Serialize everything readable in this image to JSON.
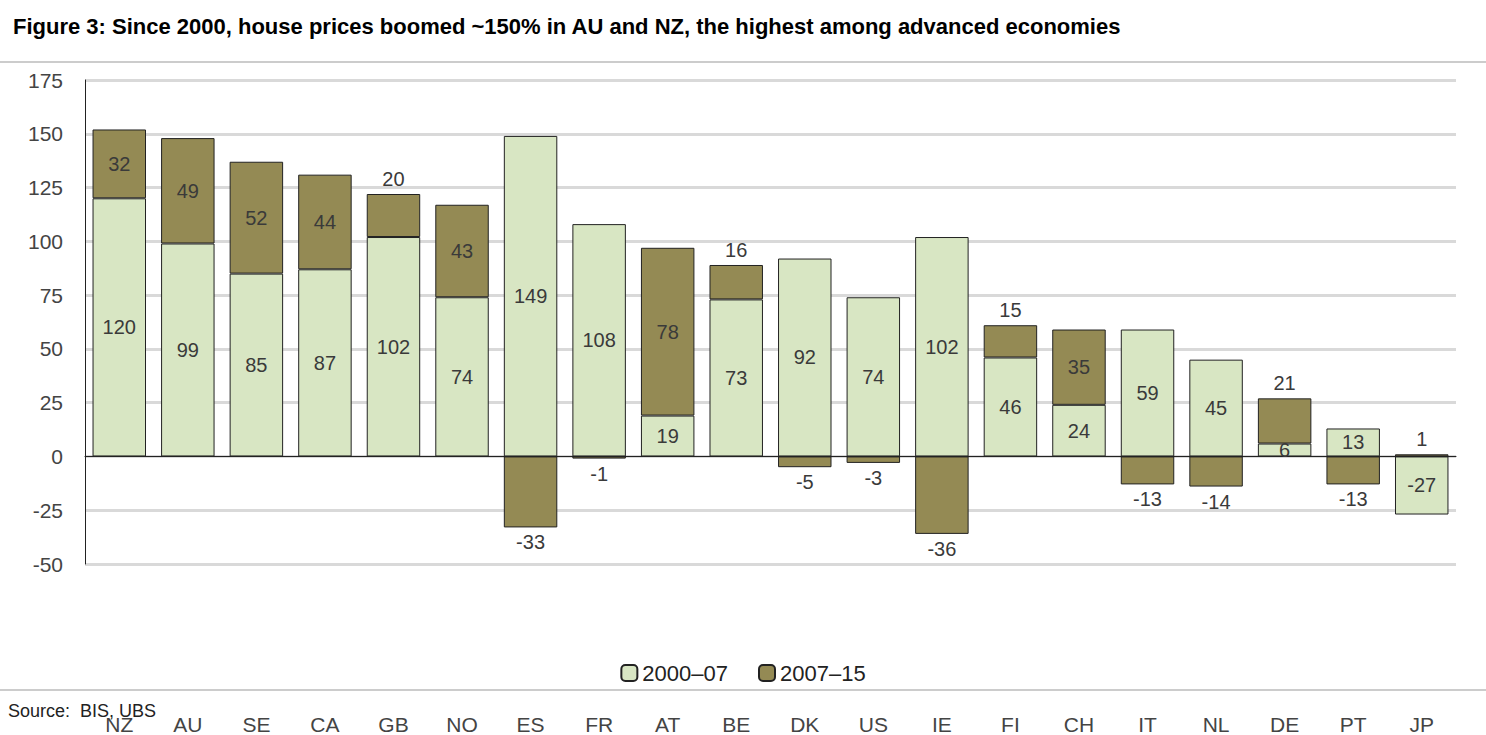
{
  "chart_data": {
    "type": "bar",
    "title": "Figure 3: Since 2000, house prices boomed ~150% in AU and NZ, the highest among advanced economies",
    "source": "Source:  BIS, UBS",
    "categories": [
      "NZ",
      "AU",
      "SE",
      "CA",
      "GB",
      "NO",
      "ES",
      "FR",
      "AT",
      "BE",
      "DK",
      "US",
      "IE",
      "FI",
      "CH",
      "IT",
      "NL",
      "DE",
      "PT",
      "JP"
    ],
    "series": [
      {
        "name": "2000–07",
        "color": "#d8e6c3",
        "values": [
          120,
          99,
          85,
          87,
          102,
          74,
          149,
          108,
          19,
          73,
          92,
          74,
          102,
          46,
          24,
          59,
          45,
          6,
          13,
          -27
        ]
      },
      {
        "name": "2007–15",
        "color": "#948a54",
        "values": [
          32,
          49,
          52,
          44,
          20,
          43,
          -33,
          -1,
          78,
          16,
          -5,
          -3,
          -36,
          15,
          35,
          -13,
          -14,
          21,
          -13,
          1
        ]
      }
    ],
    "ylim": [
      -50,
      175
    ],
    "yticks": [
      -50,
      -25,
      0,
      25,
      50,
      75,
      100,
      125,
      150,
      175
    ],
    "stacked": true,
    "data_labels": true,
    "grid": true,
    "legend": "bottom"
  }
}
